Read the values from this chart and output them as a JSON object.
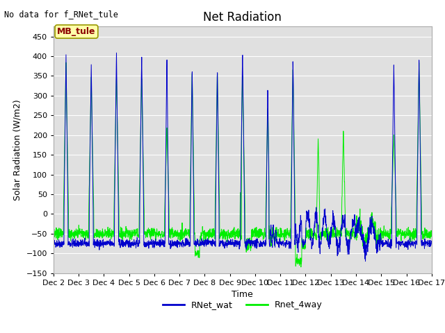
{
  "title": "Net Radiation",
  "top_left_text": "No data for f_RNet_tule",
  "ylabel": "Solar Radiation (W/m2)",
  "xlabel": "Time",
  "ylim": [
    -150,
    475
  ],
  "yticks": [
    -150,
    -100,
    -50,
    0,
    50,
    100,
    150,
    200,
    250,
    300,
    350,
    400,
    450
  ],
  "legend_label": "MB_tule",
  "line1_label": "RNet_wat",
  "line2_label": "Rnet_4way",
  "line1_color": "#0000cc",
  "line2_color": "#00ee00",
  "bg_color": "#e0e0e0",
  "fig_bg_color": "#ffffff",
  "title_fontsize": 12,
  "axis_fontsize": 9,
  "tick_fontsize": 8,
  "n_days": 15,
  "pts_per_day": 144,
  "night_base_wat": -75,
  "night_base_4way": -50
}
